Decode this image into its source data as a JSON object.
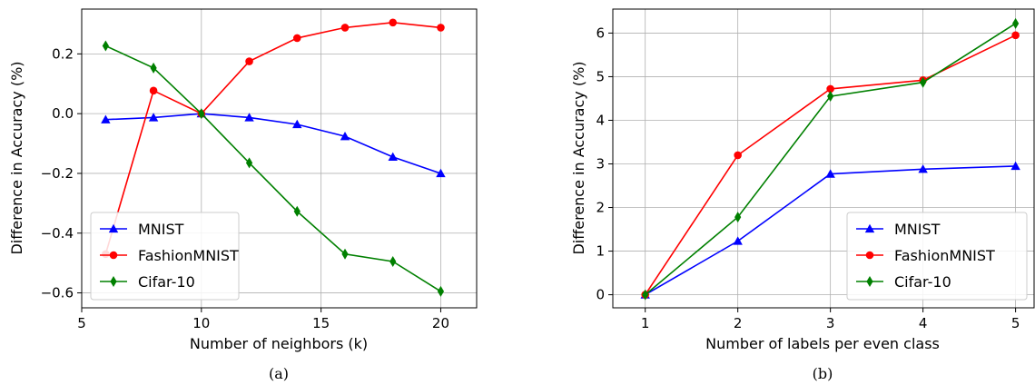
{
  "chart_data": [
    {
      "type": "line",
      "caption": "(a)",
      "xlabel": "Number of neighbors (k)",
      "ylabel": "Difference in Accuracy (%)",
      "xlim": [
        5,
        21.5
      ],
      "ylim": [
        -0.65,
        0.35
      ],
      "xticks": [
        5,
        10,
        15,
        20
      ],
      "yticks": [
        -0.6,
        -0.4,
        -0.2,
        0.0,
        0.2
      ],
      "xtick_labels": [
        "5",
        "10",
        "15",
        "20"
      ],
      "ytick_labels": [
        "−0.6",
        "−0.4",
        "−0.2",
        "0.0",
        "0.2"
      ],
      "grid": true,
      "legend_position": "lower-left",
      "x": [
        6,
        8,
        10,
        12,
        14,
        16,
        18,
        20
      ],
      "series": [
        {
          "name": "MNIST",
          "color": "#0000ff",
          "marker": "triangle",
          "values": [
            -0.02,
            -0.013,
            0.0,
            -0.013,
            -0.036,
            -0.076,
            -0.145,
            -0.2
          ]
        },
        {
          "name": "FashionMNIST",
          "color": "#ff0000",
          "marker": "circle",
          "values": [
            -0.47,
            0.077,
            0.0,
            0.175,
            0.253,
            0.288,
            0.305,
            0.288
          ]
        },
        {
          "name": "Cifar-10",
          "color": "#008000",
          "marker": "diamond",
          "values": [
            0.227,
            0.153,
            0.0,
            -0.165,
            -0.327,
            -0.47,
            -0.495,
            -0.595
          ]
        }
      ]
    },
    {
      "type": "line",
      "caption": "(b)",
      "xlabel": "Number of labels per even class",
      "ylabel": "Difference in Accuracy (%)",
      "xlim": [
        0.65,
        5.2
      ],
      "ylim": [
        -0.3,
        6.55
      ],
      "xticks": [
        1,
        2,
        3,
        4,
        5
      ],
      "yticks": [
        0,
        1,
        2,
        3,
        4,
        5,
        6
      ],
      "xtick_labels": [
        "1",
        "2",
        "3",
        "4",
        "5"
      ],
      "ytick_labels": [
        "0",
        "1",
        "2",
        "3",
        "4",
        "5",
        "6"
      ],
      "grid": true,
      "legend_position": "lower-right",
      "x": [
        1,
        2,
        3,
        4,
        5
      ],
      "series": [
        {
          "name": "MNIST",
          "color": "#0000ff",
          "marker": "triangle",
          "values": [
            0.0,
            1.23,
            2.77,
            2.88,
            2.95
          ]
        },
        {
          "name": "FashionMNIST",
          "color": "#ff0000",
          "marker": "circle",
          "values": [
            0.0,
            3.2,
            4.72,
            4.92,
            5.95
          ]
        },
        {
          "name": "Cifar-10",
          "color": "#008000",
          "marker": "diamond",
          "values": [
            0.0,
            1.78,
            4.55,
            4.87,
            6.22
          ]
        }
      ]
    }
  ]
}
